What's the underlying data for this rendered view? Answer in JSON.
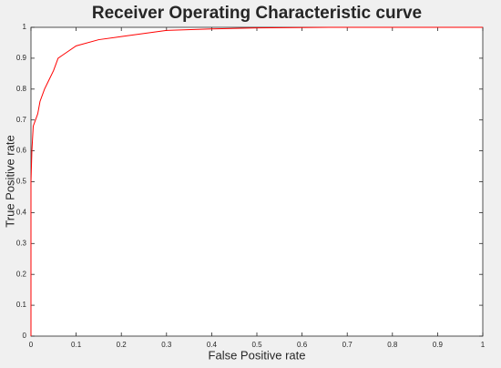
{
  "chart_data": {
    "type": "line",
    "title": "Receiver Operating Characteristic curve",
    "xlabel": "False Positive rate",
    "ylabel": "True Positive rate",
    "x": [
      0,
      0,
      0.002,
      0.005,
      0.01,
      0.015,
      0.02,
      0.03,
      0.04,
      0.05,
      0.06,
      0.07,
      0.08,
      0.1,
      0.15,
      0.2,
      0.25,
      0.3,
      0.4,
      0.5,
      0.66,
      1
    ],
    "values": [
      0,
      0.5,
      0.6,
      0.68,
      0.7,
      0.72,
      0.76,
      0.8,
      0.83,
      0.86,
      0.9,
      0.91,
      0.92,
      0.94,
      0.96,
      0.97,
      0.98,
      0.99,
      0.995,
      0.998,
      1,
      1
    ],
    "color": "#ff0000",
    "xlim": [
      0,
      1
    ],
    "ylim": [
      0,
      1
    ],
    "xticks": [
      0,
      0.1,
      0.2,
      0.3,
      0.4,
      0.5,
      0.6,
      0.7,
      0.8,
      0.9,
      1
    ],
    "yticks": [
      0,
      0.1,
      0.2,
      0.3,
      0.4,
      0.5,
      0.6,
      0.7,
      0.8,
      0.9,
      1
    ]
  }
}
